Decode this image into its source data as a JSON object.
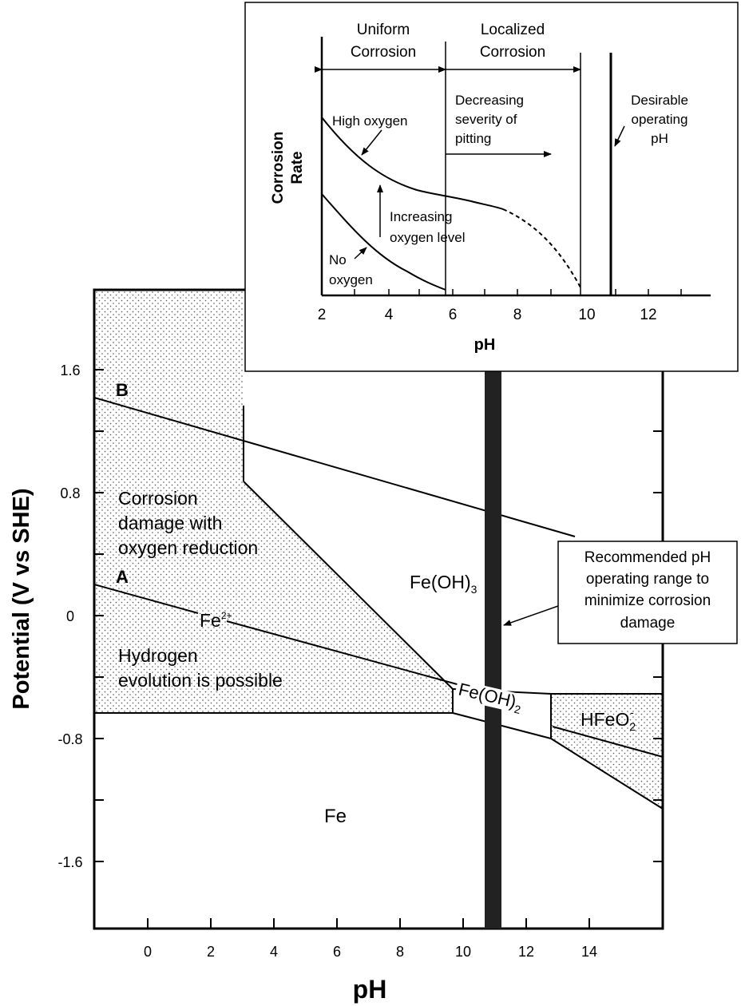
{
  "main": {
    "xlabel": "pH",
    "ylabel": "Potential (V vs SHE)",
    "xticks": [
      "0",
      "2",
      "4",
      "6",
      "8",
      "10",
      "12",
      "14"
    ],
    "yticks": [
      "1.6",
      "0.8",
      "0",
      "-0.8",
      "-1.6"
    ],
    "line_a_label": "A",
    "line_b_label": "B",
    "regions": {
      "corrosion_1": "Corrosion",
      "corrosion_2": "damage with",
      "corrosion_3": "oxygen reduction",
      "hydrogen_1": "Hydrogen",
      "hydrogen_2": "evolution is possible",
      "fe_ion": "Fe",
      "fe_ion_charge": "2+",
      "feoh3": "Fe(OH)",
      "feoh3_sub": "3",
      "feoh2": "Fe(OH)",
      "feoh2_sub": "2",
      "hfeo2": "HFeO",
      "hfeo2_sub": "2",
      "hfeo2_charge": "-",
      "fe": "Fe"
    },
    "callout": [
      "Recommended pH",
      "operating range to",
      "minimize corrosion",
      "damage"
    ]
  },
  "inset": {
    "xlabel": "pH",
    "ylabel_1": "Corrosion",
    "ylabel_2": "Rate",
    "xticks": [
      "2",
      "4",
      "6",
      "8",
      "10",
      "12"
    ],
    "uniform_1": "Uniform",
    "uniform_2": "Corrosion",
    "localized_1": "Localized",
    "localized_2": "Corrosion",
    "decreasing_1": "Decreasing",
    "decreasing_2": "severity of",
    "decreasing_3": "pitting",
    "desirable_1": "Desirable",
    "desirable_2": "operating",
    "desirable_3": "pH",
    "high_oxygen": "High oxygen",
    "increasing_1": "Increasing",
    "increasing_2": "oxygen level",
    "no_oxygen_1": "No",
    "no_oxygen_2": "oxygen"
  }
}
